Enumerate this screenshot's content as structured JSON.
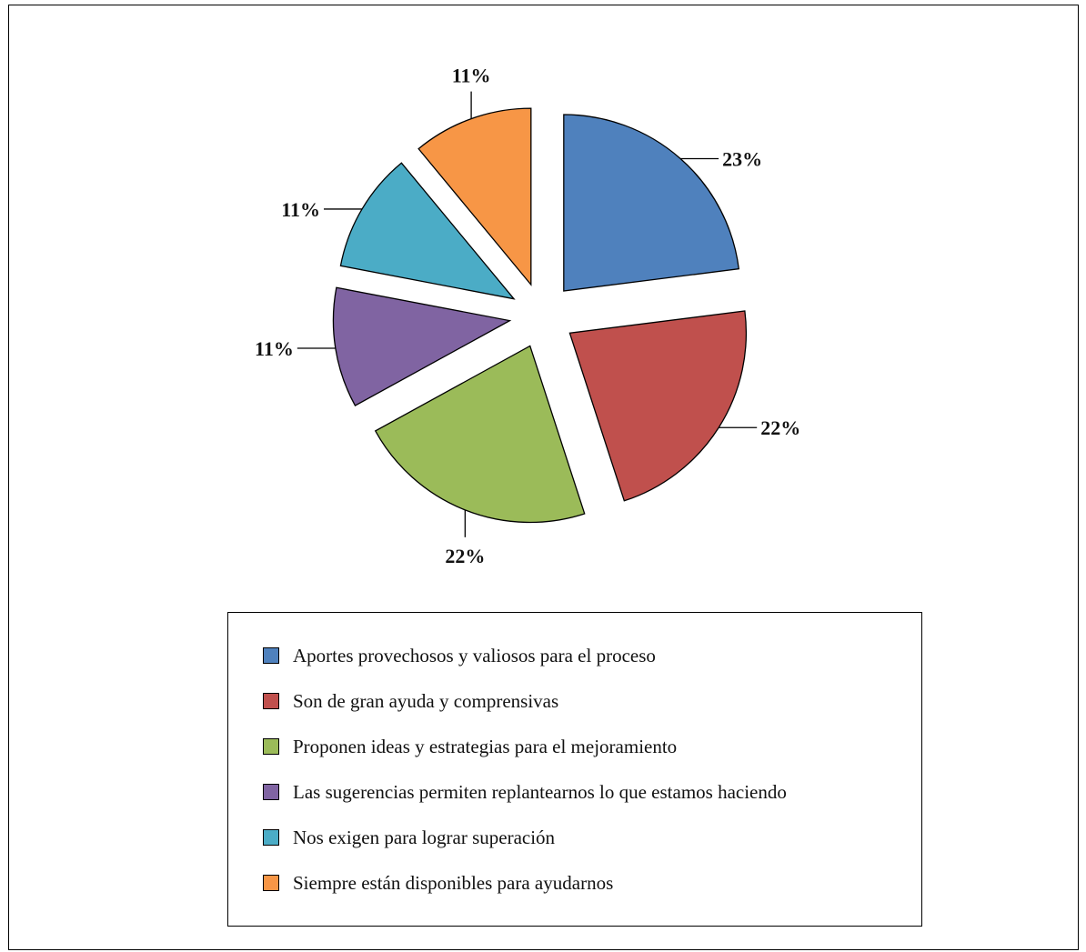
{
  "chart_data": {
    "type": "pie",
    "title": "",
    "exploded": true,
    "legend_position": "bottom",
    "series": [
      {
        "name": "",
        "values": [
          23,
          22,
          22,
          11,
          11,
          11
        ]
      }
    ],
    "categories": [
      "Aportes provechosos y valiosos para el proceso",
      "Son de gran ayuda y comprensivas",
      "Proponen ideas y estrategias para el mejoramiento",
      "Las sugerencias permiten replantearnos lo que estamos haciendo",
      "Nos exigen para lograr superación",
      "Siempre están disponibles para ayudarnos"
    ],
    "values": [
      23,
      22,
      22,
      11,
      11,
      11
    ],
    "data_labels": [
      "23%",
      "22%",
      "22%",
      "11%",
      "11%",
      "11%"
    ],
    "colors": [
      "#4F81BD",
      "#C0504D",
      "#9BBB59",
      "#8064A2",
      "#4BACC6",
      "#F79646"
    ]
  },
  "legend": {
    "items": [
      {
        "label": "Aportes provechosos y valiosos para el proceso",
        "color": "#4F81BD"
      },
      {
        "label": "Son de gran ayuda y comprensivas",
        "color": "#C0504D"
      },
      {
        "label": "Proponen ideas y estrategias para el mejoramiento",
        "color": "#9BBB59"
      },
      {
        "label": "Las sugerencias permiten replantearnos lo que estamos haciendo",
        "color": "#8064A2"
      },
      {
        "label": "Nos exigen para lograr superación",
        "color": "#4BACC6"
      },
      {
        "label": "Siempre están disponibles para ayudarnos",
        "color": "#F79646"
      }
    ]
  }
}
